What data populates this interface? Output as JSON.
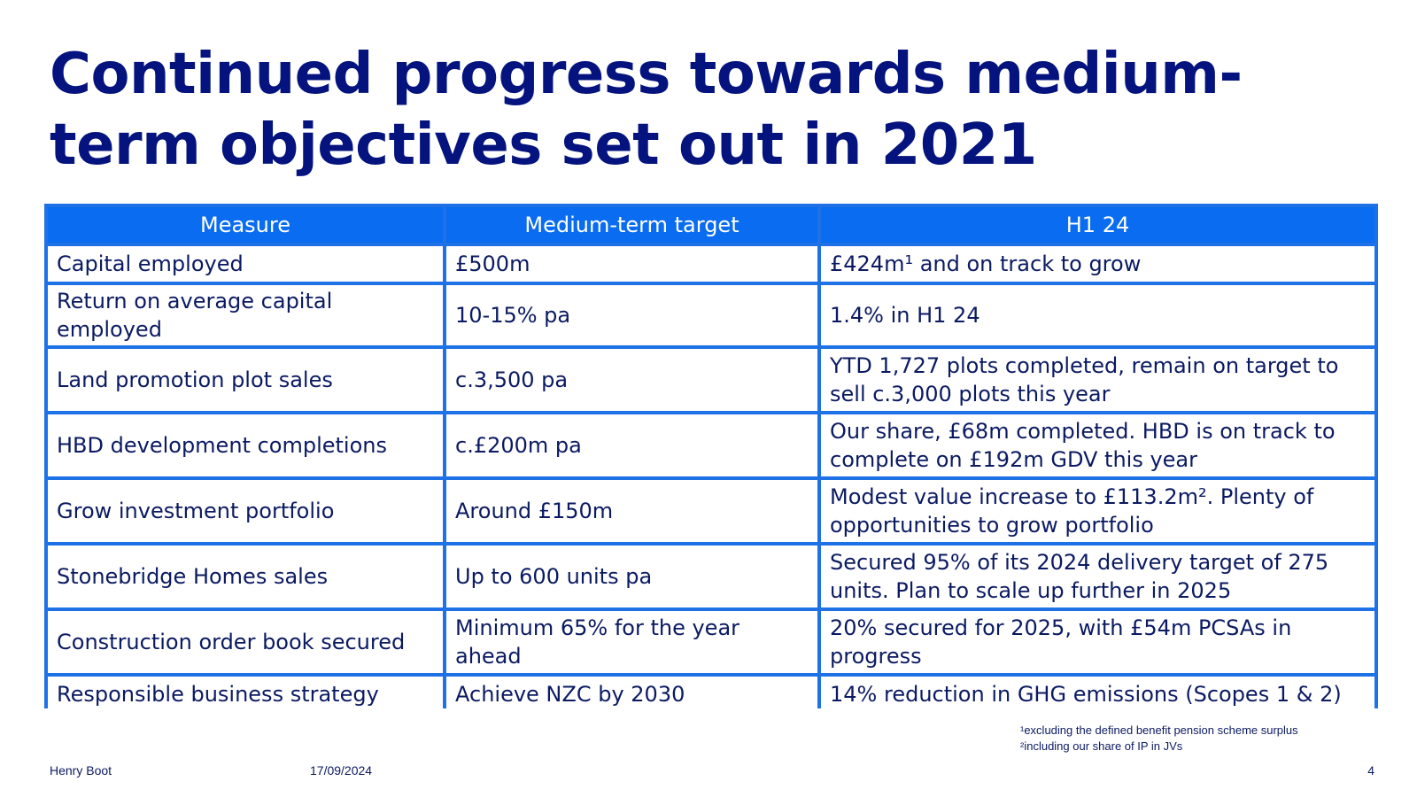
{
  "slide": {
    "title": "Continued progress towards medium-term objectives set out in 2021",
    "colors": {
      "title": "#04137e",
      "header_bg": "#0a6cf0",
      "grid": "#1f72e6",
      "text": "#0b1a62"
    }
  },
  "table": {
    "headers": [
      "Measure",
      "Medium-term target",
      "H1 24"
    ],
    "rows": [
      [
        "Capital employed",
        "£500m",
        "£424m¹ and on track to grow"
      ],
      [
        "Return on average capital employed",
        "10-15% pa",
        "1.4% in H1 24"
      ],
      [
        "Land promotion plot sales",
        "c.3,500 pa",
        "YTD 1,727 plots completed, remain on target to sell c.3,000 plots this year"
      ],
      [
        "HBD development completions",
        "c.£200m pa",
        "Our share, £68m completed. HBD is on track to complete on £192m GDV this year"
      ],
      [
        "Grow investment portfolio",
        "Around £150m",
        "Modest value increase to £113.2m². Plenty of opportunities to grow portfolio"
      ],
      [
        "Stonebridge Homes sales",
        "Up to 600 units pa",
        "Secured 95% of its 2024 delivery target of 275 units. Plan to scale up further in 2025"
      ],
      [
        "Construction order book secured",
        "Minimum 65% for the year ahead",
        "20% secured for 2025, with £54m PCSAs in progress"
      ],
      [
        "Responsible business strategy",
        "Achieve NZC by 2030",
        "14% reduction in GHG emissions (Scopes 1 & 2)"
      ]
    ]
  },
  "footnotes": [
    "¹excluding the defined benefit pension scheme surplus",
    "²including our share of IP in JVs"
  ],
  "footer": {
    "company": "Henry Boot",
    "date": "17/09/2024",
    "page": "4"
  }
}
